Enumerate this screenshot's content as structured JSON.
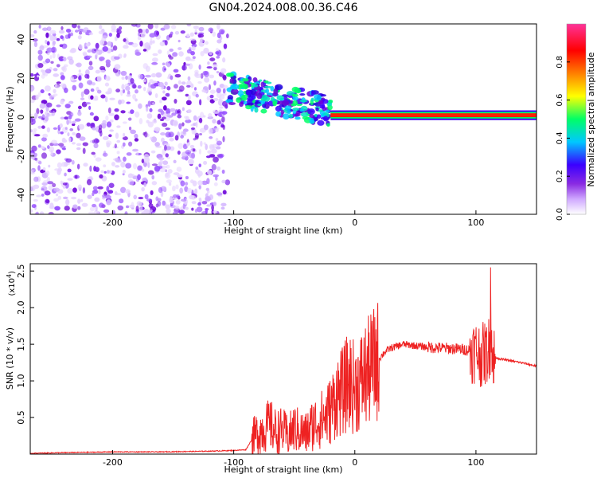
{
  "title": "GN04.2024.008.00.36.C46",
  "chart_data": [
    {
      "type": "heatmap",
      "xlabel": "Height of straight line (km)",
      "ylabel": "Frequency (Hz)",
      "xlim": [
        -268,
        150
      ],
      "ylim": [
        -50,
        48
      ],
      "xticks": [
        -200,
        -100,
        0,
        100
      ],
      "yticks": [
        -40,
        -20,
        0,
        20,
        40
      ],
      "colorbar": {
        "label": "Normalized spectral amplitude",
        "range": [
          0.0,
          1.0
        ],
        "ticks": [
          0.0,
          0.2,
          0.4,
          0.6,
          0.8
        ],
        "colors": [
          "#ffffff",
          "#cfa8ff",
          "#8a2be2",
          "#3a00ff",
          "#00c8ff",
          "#00ff66",
          "#ffff00",
          "#ff7f00",
          "#ff0000",
          "#ff3399"
        ]
      },
      "regions": [
        {
          "x": [
            -268,
            -105
          ],
          "freq": [
            -50,
            48
          ],
          "amplitude": 0.2,
          "pattern": "scattered noise"
        },
        {
          "x": [
            -105,
            -20
          ],
          "freq": [
            -10,
            18
          ],
          "amplitude": 0.4,
          "pattern": "descending band"
        },
        {
          "x": [
            -20,
            150
          ],
          "freq": [
            0,
            3
          ],
          "amplitude": 0.9,
          "pattern": "narrow band near 1-2 Hz"
        }
      ]
    },
    {
      "type": "line",
      "xlabel": "Height of straight line (km)",
      "ylabel": "SNR (10 * v/v)",
      "yscale_label": "(x10",
      "yscale_exp": "4",
      "yscale_close": ")",
      "color": "#ee2222",
      "xlim": [
        -268,
        150
      ],
      "ylim": [
        0,
        2.6
      ],
      "xticks": [
        -200,
        -100,
        0,
        100
      ],
      "yticks": [
        0.5,
        1.0,
        1.5,
        2.0,
        2.5
      ],
      "ytick_labels": [
        "0.5",
        "1.0",
        "1.5",
        "2.0",
        "2.5"
      ],
      "x": [
        -268,
        -240,
        -200,
        -160,
        -120,
        -100,
        -90,
        -85,
        -80,
        -75,
        -70,
        -65,
        -60,
        -55,
        -50,
        -45,
        -40,
        -35,
        -30,
        -25,
        -20,
        -15,
        -10,
        -5,
        0,
        5,
        10,
        15,
        20,
        25,
        30,
        40,
        50,
        60,
        70,
        80,
        90,
        100,
        105,
        110,
        113,
        114,
        116,
        120,
        130,
        140,
        150
      ],
      "y": [
        0.01,
        0.02,
        0.03,
        0.03,
        0.04,
        0.05,
        0.06,
        0.2,
        0.3,
        0.35,
        0.4,
        0.3,
        0.32,
        0.25,
        0.35,
        0.3,
        0.28,
        0.4,
        0.45,
        0.5,
        0.6,
        0.8,
        0.85,
        1.0,
        0.9,
        1.0,
        1.1,
        1.2,
        1.3,
        1.4,
        1.45,
        1.5,
        1.48,
        1.46,
        1.45,
        1.44,
        1.43,
        1.4,
        1.35,
        1.4,
        1.6,
        1.3,
        1.32,
        1.3,
        1.27,
        1.24,
        1.2
      ]
    }
  ]
}
